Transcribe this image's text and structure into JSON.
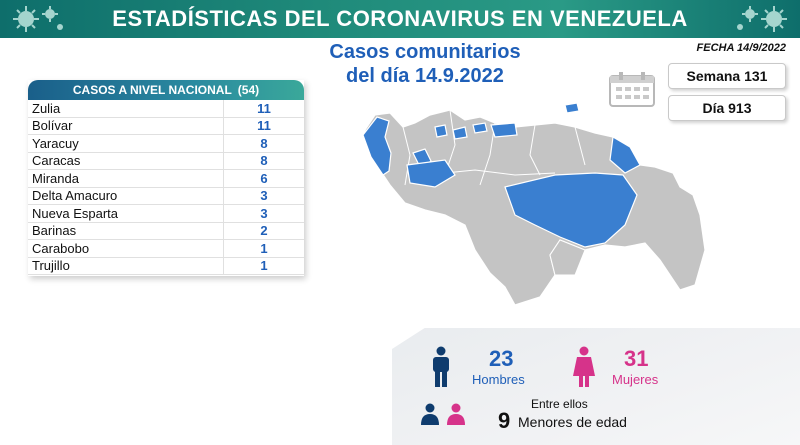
{
  "header": {
    "title": "ESTADÍSTICAS DEL CORONAVIRUS EN VENEZUELA"
  },
  "subtitle": {
    "line1": "Casos comunitarios",
    "line2": "del día 14.9.2022"
  },
  "fecha": "FECHA 14/9/2022",
  "semana": "Semana 131",
  "dia": "Día 913",
  "table": {
    "title": "CASOS A NIVEL NACIONAL",
    "total": "(54)",
    "rows": [
      {
        "name": "Zulia",
        "value": "11"
      },
      {
        "name": "Bolívar",
        "value": "11"
      },
      {
        "name": "Yaracuy",
        "value": "8"
      },
      {
        "name": "Caracas",
        "value": "8"
      },
      {
        "name": "Miranda",
        "value": "6"
      },
      {
        "name": "Delta Amacuro",
        "value": "3"
      },
      {
        "name": "Nueva Esparta",
        "value": "3"
      },
      {
        "name": "Barinas",
        "value": "2"
      },
      {
        "name": "Carabobo",
        "value": "1"
      },
      {
        "name": "Trujillo",
        "value": "1"
      }
    ]
  },
  "stats": {
    "men_count": "23",
    "men_label": "Hombres",
    "women_count": "31",
    "women_label": "Mujeres",
    "among_label": "Entre ellos",
    "minors_count": "9",
    "minors_label": "Menores de edad"
  },
  "colors": {
    "header": "#1f8a7a",
    "highlight_state": "#3a7fd0",
    "other_state": "#c4c4c4",
    "men": "#0f3c6e",
    "women": "#d6338a",
    "accent_blue": "#1f5fb8"
  },
  "icons": [
    "virus-icon",
    "calendar-icon",
    "man-icon",
    "woman-icon",
    "boy-icon",
    "girl-icon"
  ]
}
